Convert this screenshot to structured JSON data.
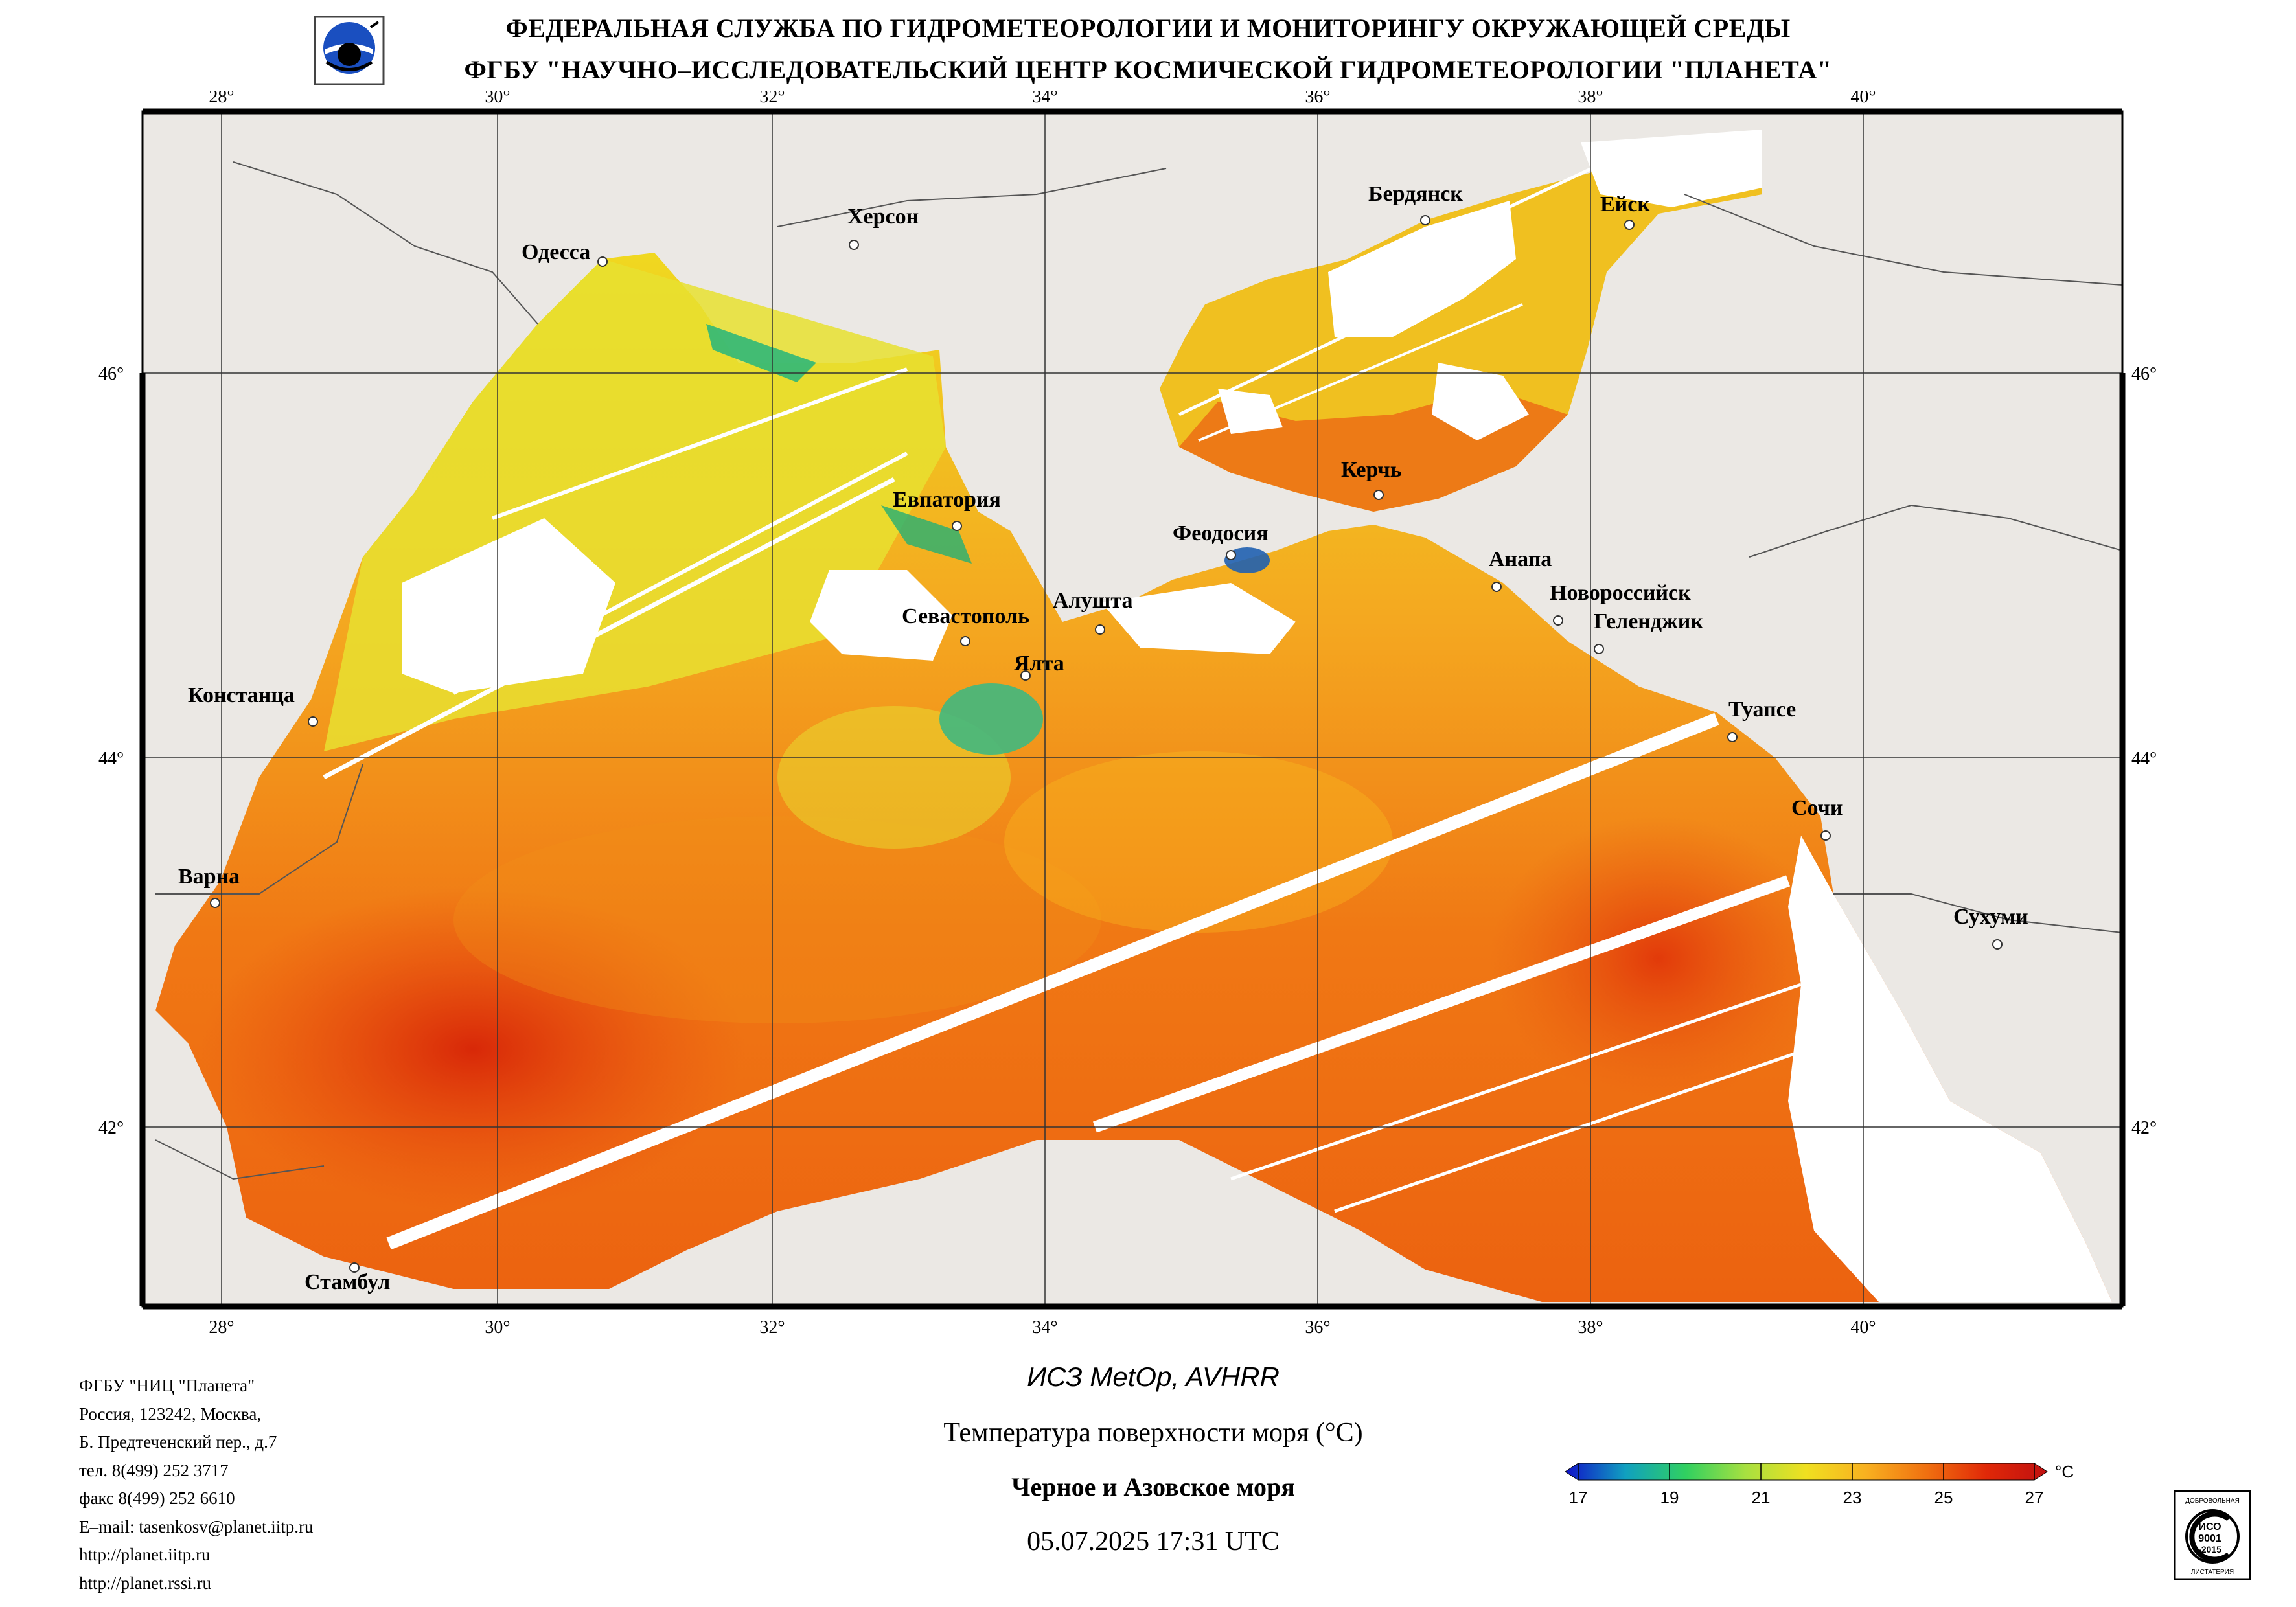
{
  "header": {
    "line1": "ФЕДЕРАЛЬНАЯ СЛУЖБА ПО ГИДРОМЕТЕОРОЛОГИИ И МОНИТОРИНГУ ОКРУЖАЮЩЕЙ СРЕДЫ",
    "line2": "ФГБУ \"НАУЧНО–ИССЛЕДОВАТЕЛЬСКИЙ ЦЕНТР КОСМИЧЕСКОЙ ГИДРОМЕТЕОРОЛОГИИ \"ПЛАНЕТА\""
  },
  "logo_icon": "planeta-logo-icon",
  "map": {
    "lon_labels": [
      "28°",
      "30°",
      "32°",
      "34°",
      "36°",
      "38°",
      "40°"
    ],
    "lat_labels": [
      "46°",
      "44°",
      "42°"
    ],
    "cities": [
      {
        "name": "Херсон"
      },
      {
        "name": "Одесса"
      },
      {
        "name": "Бердянск"
      },
      {
        "name": "Ейск"
      },
      {
        "name": "Керчь"
      },
      {
        "name": "Евпатория"
      },
      {
        "name": "Феодосия"
      },
      {
        "name": "Анапа"
      },
      {
        "name": "Новороссийск"
      },
      {
        "name": "Геленджик"
      },
      {
        "name": "Алушта"
      },
      {
        "name": "Севастополь"
      },
      {
        "name": "Ялта"
      },
      {
        "name": "Констанца"
      },
      {
        "name": "Туапсе"
      },
      {
        "name": "Сочи"
      },
      {
        "name": "Варна"
      },
      {
        "name": "Сухуми"
      },
      {
        "name": "Стамбул"
      }
    ]
  },
  "footer": {
    "org_lines": [
      "ФГБУ \"НИЦ \"Планета\"",
      "Россия, 123242, Москва,",
      "Б. Предтеченский пер., д.7",
      "тел. 8(499) 252 3717",
      "факс 8(499) 252 6610",
      "E–mail: tasenkosv@planet.iitp.ru",
      "http://planet.iitp.ru",
      "http://planet.rssi.ru"
    ],
    "satellite": "ИСЗ MetOp, AVHRR",
    "parameter": "Температура поверхности моря (°С)",
    "region": "Черное и Азовское моря",
    "datetime": "05.07.2025 17:31 UTC"
  },
  "colorbar": {
    "unit": "°C",
    "ticks": [
      "17",
      "19",
      "21",
      "23",
      "25",
      "27"
    ],
    "colors": [
      "#1010c8",
      "#10a0c0",
      "#30d060",
      "#a8e040",
      "#f0e020",
      "#f8b020",
      "#f07010",
      "#e02808",
      "#c01010"
    ]
  },
  "iso_badge": {
    "top_text": "ДОБРОВОЛЬНАЯ",
    "mid1": "ИСО",
    "mid2": "9001",
    "mid3": "-2015",
    "bottom_text": "ЛИСТАТЕРИЯ"
  }
}
